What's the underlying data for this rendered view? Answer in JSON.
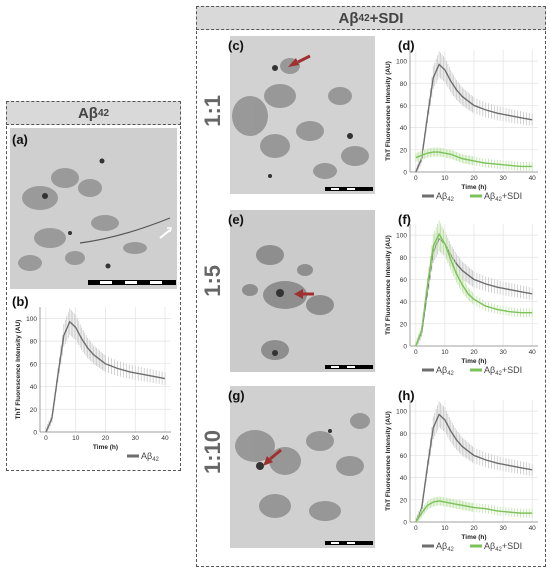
{
  "panels_left": {
    "title": "Aβ",
    "title_sub": "42"
  },
  "panels_right": {
    "title": "Aβ",
    "title_sub": "42",
    "title_suffix": " +SDI"
  },
  "panel_labels": {
    "a": "(a)",
    "b": "(b)",
    "c": "(c)",
    "d": "(d)",
    "e": "(e)",
    "f": "(f)",
    "g": "(g)",
    "h": "(h)"
  },
  "ratios": [
    "1:1",
    "1:5",
    "1:10"
  ],
  "colors": {
    "abeta": "#6e6e6e",
    "sdi": "#7cc25a",
    "error_abeta": "#c8c8c8",
    "error_sdi": "#bfe3a8",
    "arrow": "#a03030"
  },
  "chart_data": [
    {
      "id": "b",
      "type": "line",
      "xlabel": "Time (h)",
      "ylabel": "ThT Fluorescence Intensity (AU)",
      "xticks": [
        0,
        10,
        20,
        30,
        40
      ],
      "yticks": [
        0,
        20,
        40,
        60,
        80,
        100
      ],
      "xlim": [
        -2,
        42
      ],
      "ylim": [
        0,
        110
      ],
      "series": [
        {
          "name": "Aβ42",
          "legend": "Aβ",
          "legend_sub": "42",
          "x": [
            0,
            2,
            4,
            6,
            8,
            10,
            12,
            14,
            16,
            18,
            20,
            24,
            28,
            32,
            36,
            40
          ],
          "y": [
            0,
            12,
            50,
            85,
            97,
            92,
            82,
            74,
            68,
            64,
            60,
            56,
            53,
            51,
            49,
            47
          ]
        }
      ]
    },
    {
      "id": "d",
      "type": "line",
      "xlabel": "Time (h)",
      "ylabel": "ThT Fluorescence Intensity (AU)",
      "xticks": [
        0,
        10,
        20,
        30,
        40
      ],
      "yticks": [
        0,
        20,
        40,
        60,
        80,
        100
      ],
      "xlim": [
        -2,
        42
      ],
      "ylim": [
        0,
        110
      ],
      "series": [
        {
          "name": "Aβ42",
          "legend": "Aβ",
          "legend_sub": "42",
          "x": [
            0,
            2,
            4,
            6,
            8,
            10,
            12,
            14,
            16,
            18,
            20,
            24,
            28,
            32,
            36,
            40
          ],
          "y": [
            0,
            12,
            50,
            85,
            97,
            92,
            82,
            74,
            68,
            64,
            60,
            56,
            53,
            51,
            49,
            47
          ]
        },
        {
          "name": "Aβ42+SDI",
          "legend": "Aβ",
          "legend_sub": "42",
          "legend_suffix": "+SDI",
          "x": [
            0,
            2,
            4,
            6,
            8,
            10,
            12,
            14,
            16,
            18,
            20,
            24,
            28,
            32,
            36,
            40
          ],
          "y": [
            13,
            15,
            17,
            18,
            18,
            17,
            16,
            14,
            12,
            11,
            10,
            8,
            7,
            6,
            5,
            5
          ]
        }
      ]
    },
    {
      "id": "f",
      "type": "line",
      "xlabel": "Time (h)",
      "ylabel": "ThT Fluorescence Intensity (AU)",
      "xticks": [
        0,
        10,
        20,
        30,
        40
      ],
      "yticks": [
        0,
        20,
        40,
        60,
        80,
        100
      ],
      "xlim": [
        -2,
        42
      ],
      "ylim": [
        0,
        110
      ],
      "series": [
        {
          "name": "Aβ42",
          "legend": "Aβ",
          "legend_sub": "42",
          "x": [
            0,
            2,
            4,
            6,
            8,
            10,
            12,
            14,
            16,
            18,
            20,
            24,
            28,
            32,
            36,
            40
          ],
          "y": [
            0,
            12,
            50,
            85,
            97,
            92,
            82,
            74,
            68,
            64,
            60,
            56,
            53,
            51,
            49,
            47
          ]
        },
        {
          "name": "Aβ42+SDI",
          "legend": "Aβ",
          "legend_sub": "42",
          "legend_suffix": "+SDI",
          "x": [
            0,
            2,
            4,
            6,
            8,
            10,
            12,
            14,
            16,
            18,
            20,
            24,
            28,
            32,
            36,
            40
          ],
          "y": [
            0,
            14,
            55,
            90,
            101,
            92,
            78,
            65,
            55,
            47,
            42,
            36,
            33,
            31,
            30,
            30
          ]
        }
      ]
    },
    {
      "id": "h",
      "type": "line",
      "xlabel": "Time (h)",
      "ylabel": "ThT Fluorescence Intensity (AU)",
      "xticks": [
        0,
        10,
        20,
        30,
        40
      ],
      "yticks": [
        0,
        20,
        40,
        60,
        80,
        100
      ],
      "xlim": [
        -2,
        42
      ],
      "ylim": [
        0,
        110
      ],
      "series": [
        {
          "name": "Aβ42",
          "legend": "Aβ",
          "legend_sub": "42",
          "x": [
            0,
            2,
            4,
            6,
            8,
            10,
            12,
            14,
            16,
            18,
            20,
            24,
            28,
            32,
            36,
            40
          ],
          "y": [
            0,
            12,
            50,
            85,
            97,
            92,
            82,
            74,
            68,
            64,
            60,
            56,
            53,
            51,
            49,
            47
          ]
        },
        {
          "name": "Aβ42+SDI",
          "legend": "Aβ",
          "legend_sub": "42",
          "legend_suffix": "+SDI",
          "x": [
            0,
            2,
            4,
            6,
            8,
            10,
            12,
            14,
            16,
            18,
            20,
            24,
            28,
            32,
            36,
            40
          ],
          "y": [
            0,
            8,
            15,
            18,
            19,
            18,
            17,
            16,
            15,
            14,
            13,
            12,
            10,
            9,
            8,
            8
          ]
        }
      ]
    }
  ]
}
